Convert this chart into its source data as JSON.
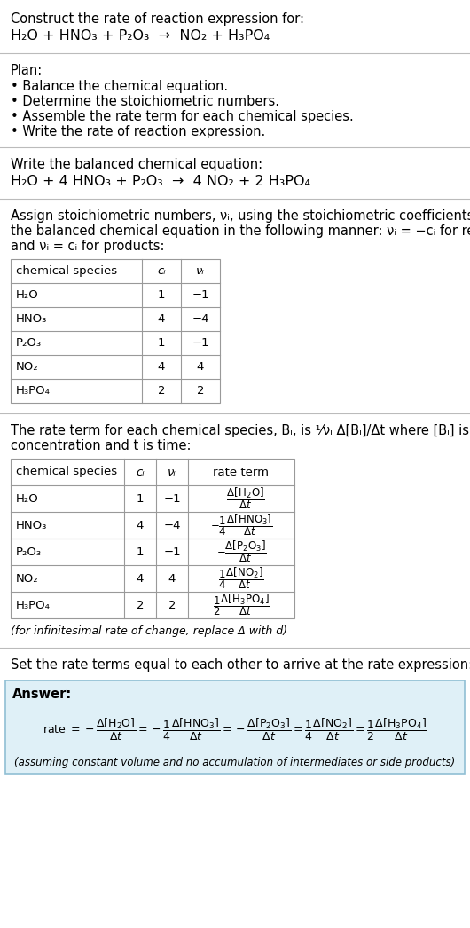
{
  "title_line1": "Construct the rate of reaction expression for:",
  "plan_header": "Plan:",
  "plan_items": [
    "• Balance the chemical equation.",
    "• Determine the stoichiometric numbers.",
    "• Assemble the rate term for each chemical species.",
    "• Write the rate of reaction expression."
  ],
  "balanced_header": "Write the balanced chemical equation:",
  "stoich_intro_lines": [
    "Assign stoichiometric numbers, νᵢ, using the stoichiometric coefficients, cᵢ, from",
    "the balanced chemical equation in the following manner: νᵢ = −cᵢ for reactants",
    "and νᵢ = cᵢ for products:"
  ],
  "table1_headers": [
    "chemical species",
    "cᵢ",
    "νᵢ"
  ],
  "table1_data": [
    [
      "H₂O",
      "1",
      "−1"
    ],
    [
      "HNO₃",
      "4",
      "−4"
    ],
    [
      "P₂O₃",
      "1",
      "−1"
    ],
    [
      "NO₂",
      "4",
      "4"
    ],
    [
      "H₃PO₄",
      "2",
      "2"
    ]
  ],
  "rate_intro_lines": [
    "The rate term for each chemical species, Bᵢ, is ¹/νᵢ Δ[Bᵢ]/Δt where [Bᵢ] is the amount",
    "concentration and t is time:"
  ],
  "table2_headers": [
    "chemical species",
    "cᵢ",
    "νᵢ",
    "rate term"
  ],
  "table2_species": [
    "H₂O",
    "HNO₃",
    "P₂O₃",
    "NO₂",
    "H₃PO₄"
  ],
  "table2_ci": [
    "1",
    "4",
    "1",
    "4",
    "2"
  ],
  "table2_nu": [
    "−1",
    "−4",
    "−1",
    "4",
    "2"
  ],
  "infinitesimal_note": "(for infinitesimal rate of change, replace Δ with d)",
  "set_equal_text": "Set the rate terms equal to each other to arrive at the rate expression:",
  "answer_label": "Answer:",
  "answer_box_color": "#dff0f7",
  "answer_border_color": "#90bfd4",
  "assuming_note": "(assuming constant volume and no accumulation of intermediates or side products)",
  "bg_color": "#ffffff",
  "text_color": "#000000",
  "table_bg": "#ffffff",
  "table_border": "#999999",
  "sep_color": "#bbbbbb"
}
